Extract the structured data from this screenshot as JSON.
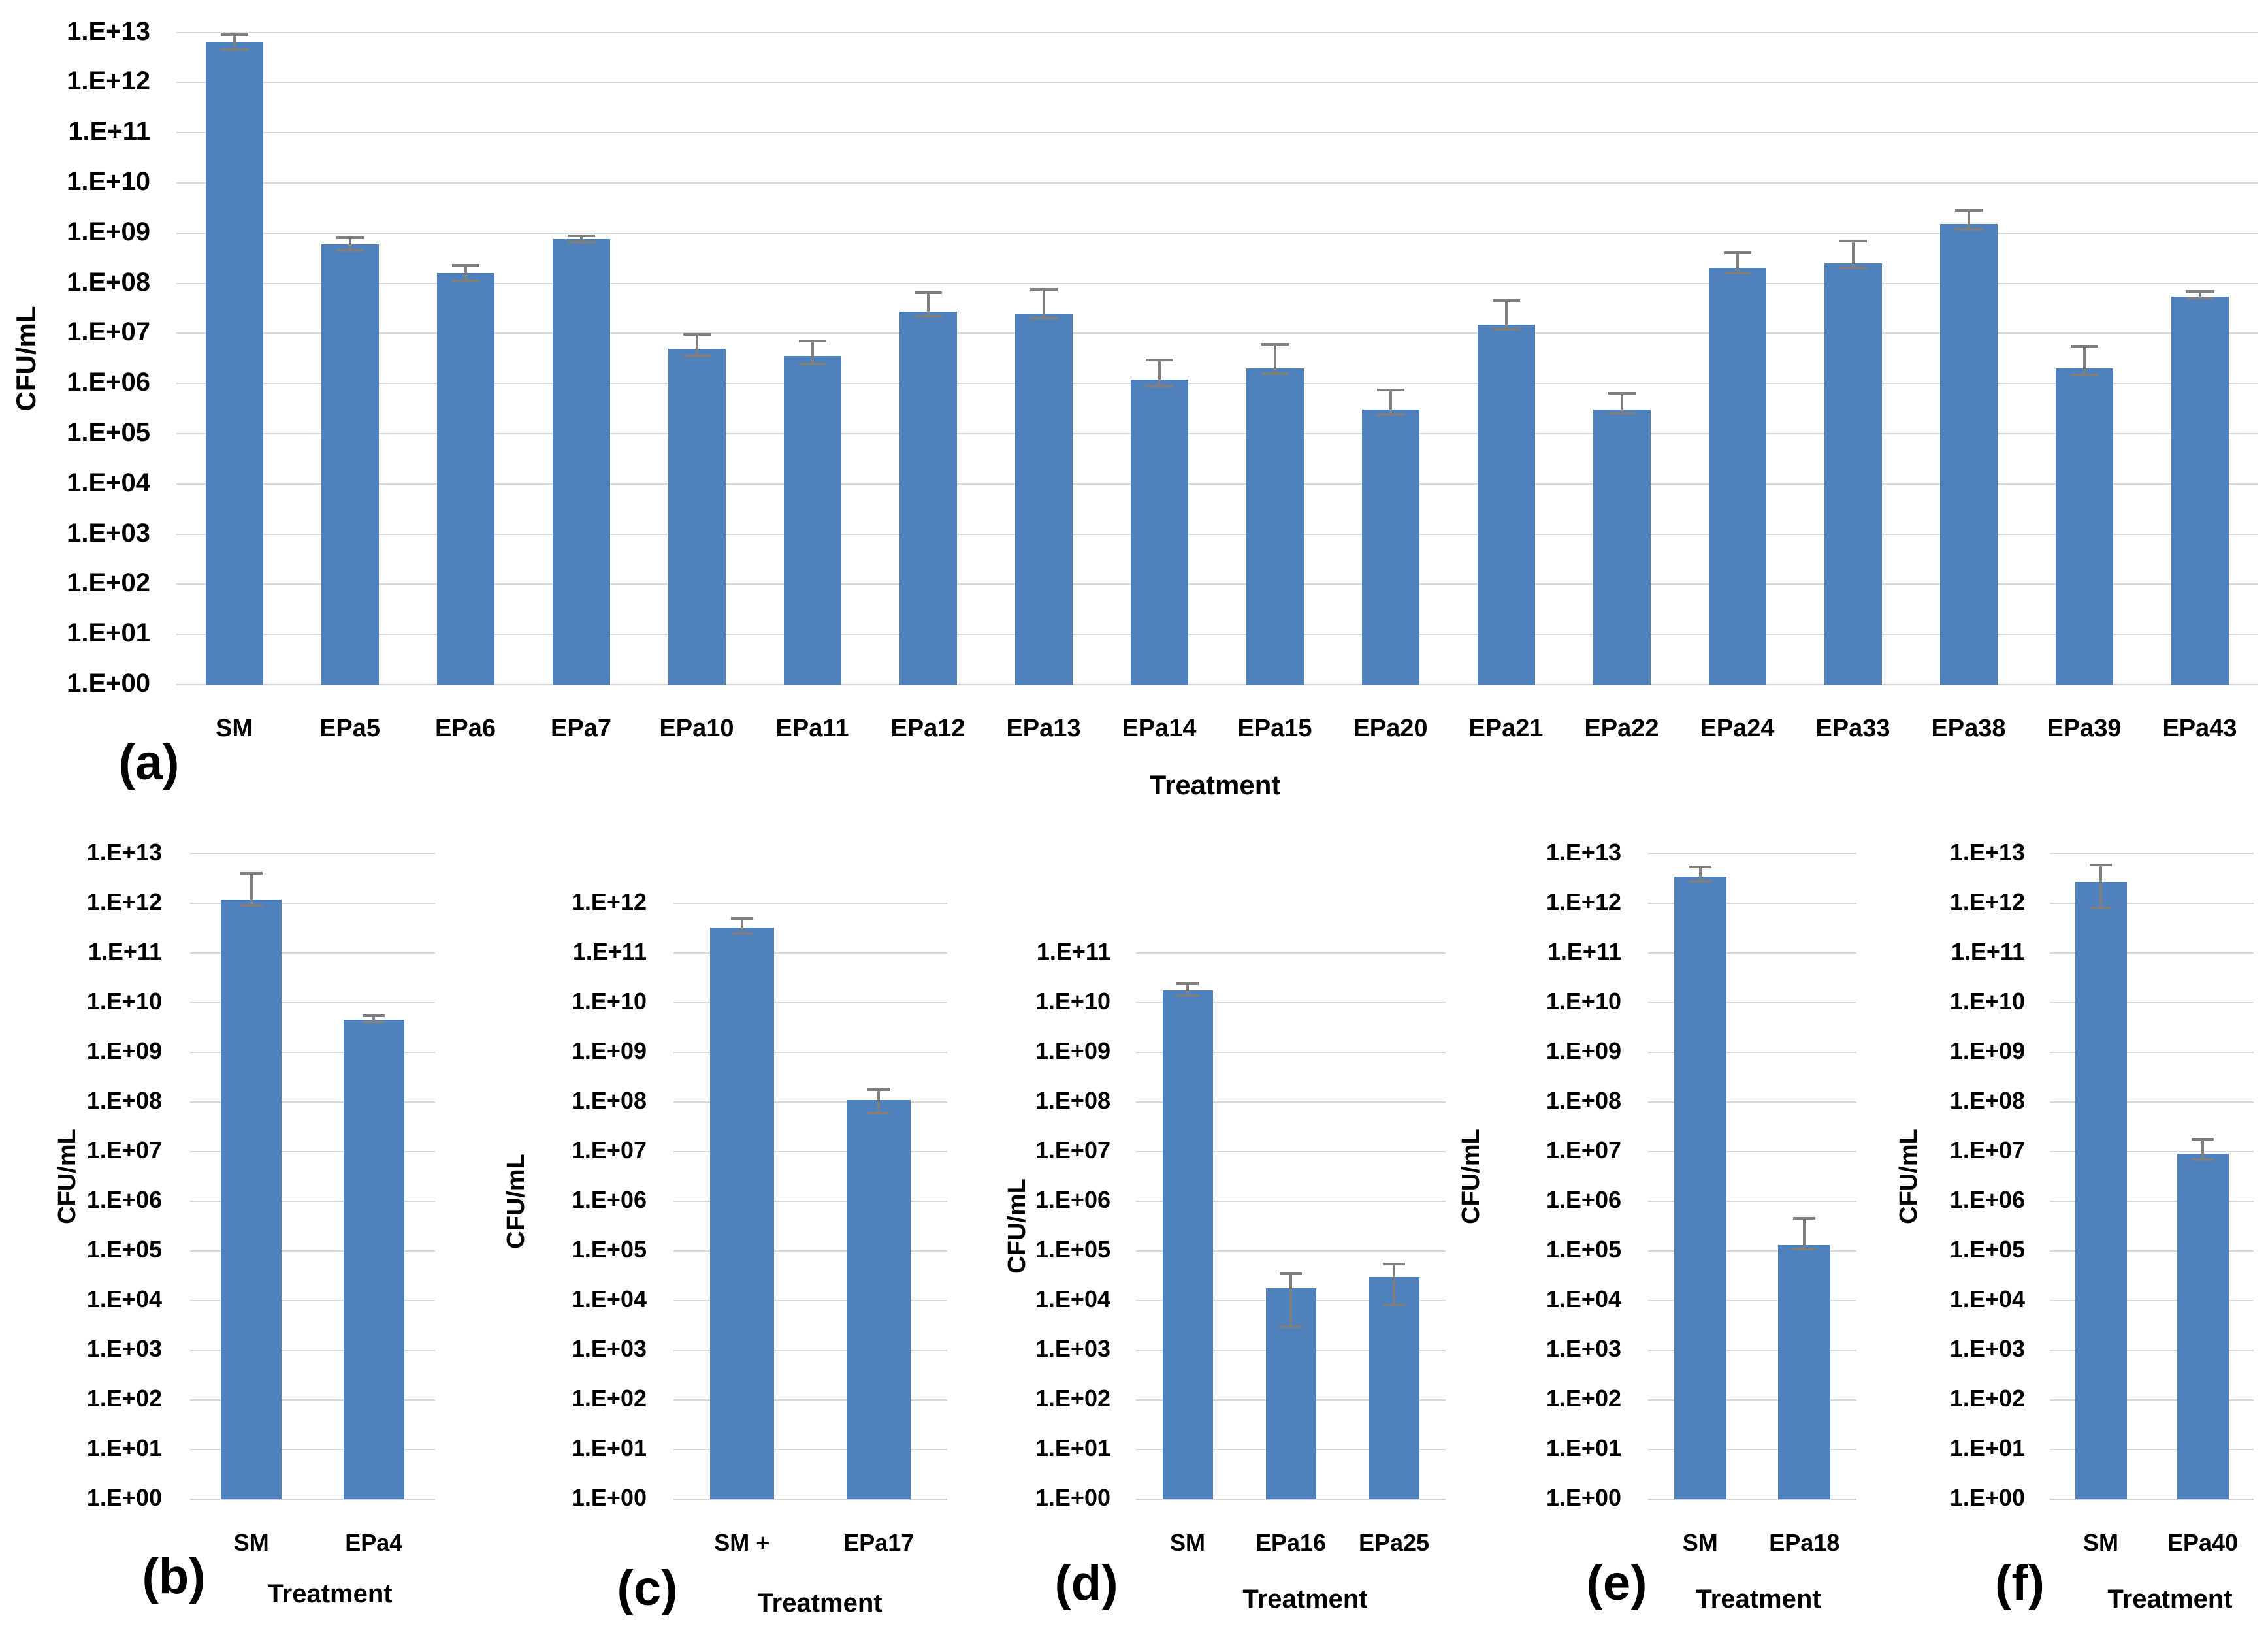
{
  "figure": {
    "colors": {
      "bar_fill": "#4f81bd",
      "error_bar": "#7f7f7f",
      "gridline": "#d9d9d9",
      "baseline": "#d2d2d2",
      "text": "#000000",
      "background": "#ffffff"
    }
  },
  "chart_data": [
    {
      "id": "a",
      "panel_label": "(a)",
      "type": "bar",
      "yscale": "log",
      "ylabel": "CFU/mL",
      "xlabel": "Treatment",
      "ylim": [
        1,
        10000000000000.0
      ],
      "grid": true,
      "ytick_labels": [
        "1.E+00",
        "1.E+01",
        "1.E+02",
        "1.E+03",
        "1.E+04",
        "1.E+05",
        "1.E+06",
        "1.E+07",
        "1.E+08",
        "1.E+09",
        "1.E+10",
        "1.E+11",
        "1.E+12",
        "1.E+13"
      ],
      "categories": [
        "SM",
        "EPa5",
        "EPa6",
        "EPa7",
        "EPa10",
        "EPa11",
        "EPa12",
        "EPa13",
        "EPa14",
        "EPa15",
        "EPa20",
        "EPa21",
        "EPa22",
        "EPa24",
        "EPa33",
        "EPa38",
        "EPa39",
        "EPa43"
      ],
      "values": [
        6500000000000.0,
        600000000.0,
        160000000.0,
        750000000.0,
        5000000.0,
        3500000.0,
        27000000.0,
        25000000.0,
        1200000.0,
        2000000.0,
        300000.0,
        15000000.0,
        300000.0,
        200000000.0,
        250000000.0,
        1500000000.0,
        2000000.0,
        55000000.0
      ],
      "err_lo": [
        4500000000000.0,
        450000000.0,
        110000000.0,
        650000000.0,
        3500000.0,
        2500000.0,
        22000000.0,
        20000000.0,
        900000.0,
        1600000.0,
        240000.0,
        12000000.0,
        250000.0,
        160000000.0,
        200000000.0,
        1200000000.0,
        1500000.0,
        50000000.0
      ],
      "err_hi": [
        9000000000000.0,
        800000000.0,
        230000000.0,
        880000000.0,
        9500000.0,
        7000000.0,
        65000000.0,
        75000000.0,
        3000000.0,
        6000000.0,
        750000.0,
        45000000.0,
        650000.0,
        400000000.0,
        700000000.0,
        2800000000.0,
        5500000.0,
        68000000.0
      ]
    },
    {
      "id": "b",
      "panel_label": "(b)",
      "type": "bar",
      "yscale": "log",
      "ylabel": "CFU/mL",
      "xlabel": "Treatment",
      "ylim": [
        1,
        10000000000000.0
      ],
      "grid": true,
      "ytick_labels": [
        "1.E+00",
        "1.E+01",
        "1.E+02",
        "1.E+03",
        "1.E+04",
        "1.E+05",
        "1.E+06",
        "1.E+07",
        "1.E+08",
        "1.E+09",
        "1.E+10",
        "1.E+11",
        "1.E+12",
        "1.E+13"
      ],
      "categories": [
        "SM",
        "EPa4"
      ],
      "values": [
        1200000000000.0,
        4500000000.0
      ],
      "err_lo": [
        900000000000.0,
        4000000000.0
      ],
      "err_hi": [
        4000000000000.0,
        5500000000.0
      ]
    },
    {
      "id": "c",
      "panel_label": "(c)",
      "type": "bar",
      "yscale": "log",
      "ylabel": "CFU/mL",
      "xlabel": "Treatment",
      "ylim": [
        1,
        1000000000000.0
      ],
      "grid": true,
      "ytick_labels": [
        "1.E+00",
        "1.E+01",
        "1.E+02",
        "1.E+03",
        "1.E+04",
        "1.E+05",
        "1.E+06",
        "1.E+07",
        "1.E+08",
        "1.E+09",
        "1.E+10",
        "1.E+11",
        "1.E+12"
      ],
      "categories": [
        "SM +",
        "EPa17"
      ],
      "values": [
        330000000000.0,
        110000000.0
      ],
      "err_lo": [
        250000000000.0,
        60000000.0
      ],
      "err_hi": [
        500000000000.0,
        180000000.0
      ]
    },
    {
      "id": "d",
      "panel_label": "(d)",
      "type": "bar",
      "yscale": "log",
      "ylabel": "CFU/mL",
      "xlabel": "Treatment",
      "ylim": [
        1,
        100000000000.0
      ],
      "grid": true,
      "ytick_labels": [
        "1.E+00",
        "1.E+01",
        "1.E+02",
        "1.E+03",
        "1.E+04",
        "1.E+05",
        "1.E+06",
        "1.E+07",
        "1.E+08",
        "1.E+09",
        "1.E+10",
        "1.E+11"
      ],
      "categories": [
        "SM",
        "EPa16",
        "EPa25"
      ],
      "values": [
        18000000000.0,
        18000.0,
        30000.0
      ],
      "err_lo": [
        14000000000.0,
        3000.0,
        8000.0
      ],
      "err_hi": [
        24000000000.0,
        35000.0,
        55000.0
      ]
    },
    {
      "id": "e",
      "panel_label": "(e)",
      "type": "bar",
      "yscale": "log",
      "ylabel": "CFU/mL",
      "xlabel": "Treatment",
      "ylim": [
        1,
        10000000000000.0
      ],
      "grid": true,
      "ytick_labels": [
        "1.E+00",
        "1.E+01",
        "1.E+02",
        "1.E+03",
        "1.E+04",
        "1.E+05",
        "1.E+06",
        "1.E+07",
        "1.E+08",
        "1.E+09",
        "1.E+10",
        "1.E+11",
        "1.E+12",
        "1.E+13"
      ],
      "categories": [
        "SM",
        "EPa18"
      ],
      "values": [
        3500000000000.0,
        130000.0
      ],
      "err_lo": [
        2800000000000.0,
        110000.0
      ],
      "err_hi": [
        5500000000000.0,
        450000.0
      ]
    },
    {
      "id": "f",
      "panel_label": "(f)",
      "type": "bar",
      "yscale": "log",
      "ylabel": "CFU/mL",
      "xlabel": "Treatment",
      "ylim": [
        1,
        10000000000000.0
      ],
      "grid": true,
      "ytick_labels": [
        "1.E+00",
        "1.E+01",
        "1.E+02",
        "1.E+03",
        "1.E+04",
        "1.E+05",
        "1.E+06",
        "1.E+07",
        "1.E+08",
        "1.E+09",
        "1.E+10",
        "1.E+11",
        "1.E+12",
        "1.E+13"
      ],
      "categories": [
        "SM",
        "EPa40"
      ],
      "values": [
        2700000000000.0,
        9000000.0
      ],
      "err_lo": [
        800000000000.0,
        7000000.0
      ],
      "err_hi": [
        6000000000000.0,
        18000000.0
      ]
    }
  ]
}
